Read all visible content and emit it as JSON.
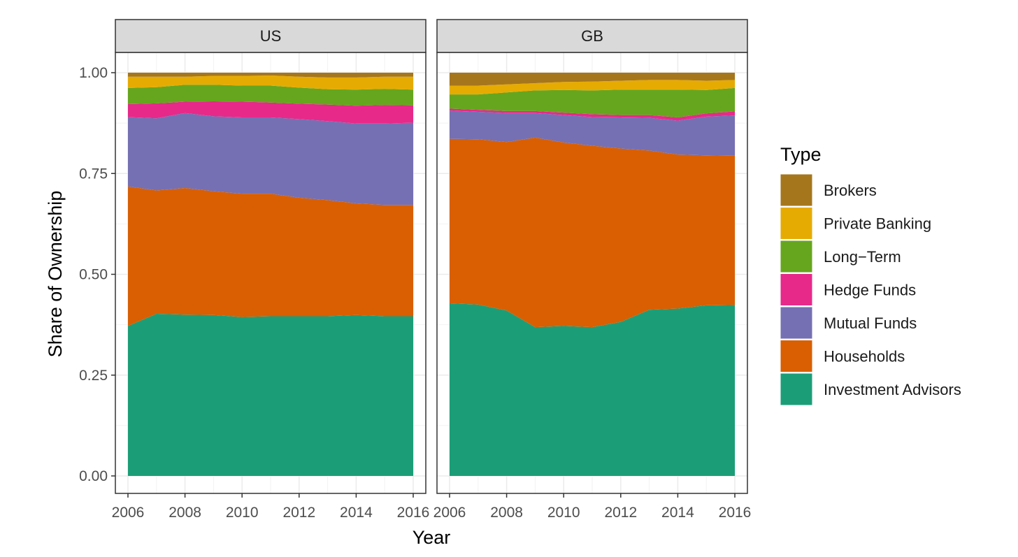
{
  "chart_data": {
    "type": "area",
    "stacked": true,
    "ylabel": "Share of Ownership",
    "xlabel": "Year",
    "ylim": [
      0,
      1
    ],
    "yticks": [
      0,
      0.25,
      0.5,
      0.75,
      1
    ],
    "ytick_labels": [
      "0.00",
      "0.25",
      "0.50",
      "0.75",
      "1.00"
    ],
    "xticks": [
      2006,
      2008,
      2010,
      2012,
      2014,
      2016
    ],
    "xtick_labels": [
      "2006",
      "2008",
      "2010",
      "2012",
      "2014",
      "2016"
    ],
    "x": [
      2006,
      2007,
      2008,
      2009,
      2010,
      2011,
      2012,
      2013,
      2014,
      2015,
      2016
    ],
    "grid": true,
    "legend": {
      "title": "Type",
      "position": "right",
      "entries": [
        "Brokers",
        "Private Banking",
        "Long−Term",
        "Hedge Funds",
        "Mutual Funds",
        "Households",
        "Investment Advisors"
      ]
    },
    "colors": {
      "Brokers": "#a6761d",
      "Private Banking": "#e6ab02",
      "Long−Term": "#66a61e",
      "Hedge Funds": "#e7298a",
      "Mutual Funds": "#7570b3",
      "Households": "#d95f02",
      "Investment Advisors": "#1b9e77"
    },
    "stack_order": [
      "Investment Advisors",
      "Households",
      "Mutual Funds",
      "Hedge Funds",
      "Long−Term",
      "Private Banking",
      "Brokers"
    ],
    "panels": [
      {
        "title": "US",
        "series": [
          {
            "name": "Investment Advisors",
            "values": [
              0.372,
              0.402,
              0.4,
              0.399,
              0.394,
              0.396,
              0.396,
              0.396,
              0.399,
              0.396,
              0.396
            ]
          },
          {
            "name": "Households",
            "values": [
              0.346,
              0.306,
              0.314,
              0.307,
              0.306,
              0.304,
              0.294,
              0.288,
              0.277,
              0.276,
              0.276
            ]
          },
          {
            "name": "Mutual Funds",
            "values": [
              0.172,
              0.179,
              0.186,
              0.186,
              0.189,
              0.189,
              0.195,
              0.196,
              0.198,
              0.202,
              0.204
            ]
          },
          {
            "name": "Hedge Funds",
            "values": [
              0.032,
              0.037,
              0.028,
              0.037,
              0.039,
              0.037,
              0.038,
              0.041,
              0.044,
              0.046,
              0.043
            ]
          },
          {
            "name": "Long−Term",
            "values": [
              0.04,
              0.04,
              0.042,
              0.041,
              0.04,
              0.042,
              0.04,
              0.038,
              0.04,
              0.04,
              0.039
            ]
          },
          {
            "name": "Private Banking",
            "values": [
              0.028,
              0.026,
              0.02,
              0.022,
              0.024,
              0.025,
              0.027,
              0.029,
              0.03,
              0.03,
              0.032
            ]
          },
          {
            "name": "Brokers",
            "values": [
              0.01,
              0.01,
              0.01,
              0.008,
              0.008,
              0.007,
              0.01,
              0.012,
              0.012,
              0.01,
              0.01
            ]
          }
        ]
      },
      {
        "title": "GB",
        "series": [
          {
            "name": "Investment Advisors",
            "values": [
              0.428,
              0.425,
              0.41,
              0.369,
              0.372,
              0.369,
              0.382,
              0.412,
              0.415,
              0.423,
              0.424
            ]
          },
          {
            "name": "Households",
            "values": [
              0.408,
              0.41,
              0.418,
              0.47,
              0.455,
              0.45,
              0.43,
              0.395,
              0.382,
              0.372,
              0.37
            ]
          },
          {
            "name": "Mutual Funds",
            "values": [
              0.07,
              0.068,
              0.072,
              0.061,
              0.068,
              0.071,
              0.077,
              0.081,
              0.084,
              0.096,
              0.1
            ]
          },
          {
            "name": "Hedge Funds",
            "values": [
              0.005,
              0.005,
              0.005,
              0.005,
              0.006,
              0.007,
              0.006,
              0.007,
              0.008,
              0.008,
              0.01
            ]
          },
          {
            "name": "Long−Term",
            "values": [
              0.035,
              0.038,
              0.046,
              0.051,
              0.056,
              0.059,
              0.063,
              0.063,
              0.069,
              0.058,
              0.058
            ]
          },
          {
            "name": "Private Banking",
            "values": [
              0.022,
              0.022,
              0.02,
              0.018,
              0.02,
              0.022,
              0.022,
              0.024,
              0.024,
              0.023,
              0.02
            ]
          },
          {
            "name": "Brokers",
            "values": [
              0.032,
              0.032,
              0.029,
              0.026,
              0.023,
              0.022,
              0.02,
              0.018,
              0.018,
              0.02,
              0.018
            ]
          }
        ]
      }
    ]
  }
}
